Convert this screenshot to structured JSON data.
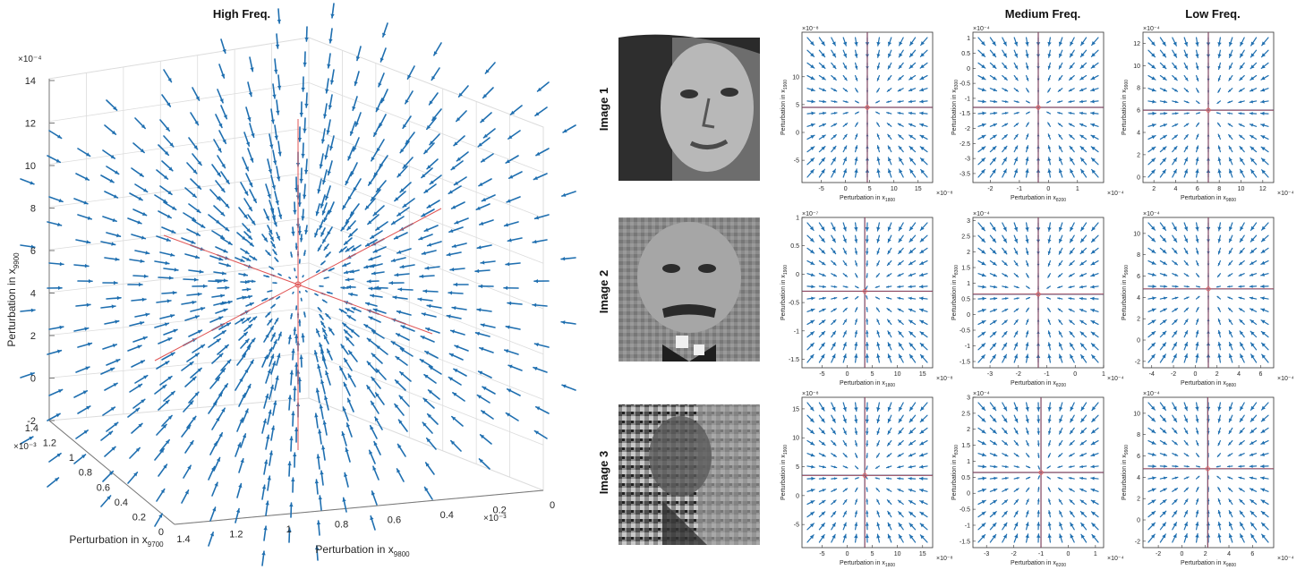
{
  "colors": {
    "arrow": "#1f6fb0",
    "axis_line": "#8b1a1a",
    "frame": "#333333",
    "grid": "#dcdcdc",
    "text": "#262626"
  },
  "column_titles": [
    "High Freq.",
    "Medium Freq.",
    "Low Freq."
  ],
  "row_labels": [
    "Image 1",
    "Image 2",
    "Image 3"
  ],
  "images": [
    {
      "label": "Image 1",
      "description_icon": "woman-face-photo-icon"
    },
    {
      "label": "Image 2",
      "description_icon": "einstein-portrait-photo-icon"
    },
    {
      "label": "Image 3",
      "description_icon": "noisy-portrait-photo-icon"
    }
  ],
  "chart_data": [
    {
      "type": "quiver3d",
      "panel": "main",
      "zlabel_base": "Perturbation in x",
      "zlabel_sub": "9900",
      "xlabel_base": "Perturbation in x",
      "xlabel_sub": "9700",
      "ylabel_base": "Perturbation in x",
      "ylabel_sub": "9800",
      "z_exponent": "×10⁻⁴",
      "x_exponent": "×10⁻³",
      "y_exponent": "×10⁻³",
      "z_ticks": [
        "-2",
        "0",
        "2",
        "4",
        "6",
        "8",
        "10",
        "12",
        "14"
      ],
      "x_ticks": [
        "0",
        "0.2",
        "0.4",
        "0.6",
        "0.8",
        "1",
        "1.2",
        "1.4"
      ],
      "y_ticks": [
        "1.4",
        "1.2",
        "1",
        "0.8",
        "0.6",
        "0.4",
        "0.2",
        "0"
      ],
      "grid": true,
      "center": [
        0.7,
        0.7,
        4
      ]
    },
    {
      "type": "quiver",
      "panel": "r1c1",
      "xlabel_base": "Perturbation in x",
      "xlabel_sub": "1800",
      "ylabel_base": "Perturbation in x",
      "ylabel_sub": "1900",
      "exp": "×10⁻⁸",
      "xexp": "×10⁻⁸",
      "xticks": [
        "-5",
        "0",
        "5",
        "10",
        "15"
      ],
      "xlim": [
        -9,
        18
      ],
      "yticks": [
        "-5",
        "0",
        "5",
        "10"
      ],
      "ylim": [
        -9,
        18
      ],
      "center": [
        4.5,
        4.5
      ]
    },
    {
      "type": "quiver",
      "panel": "r1c2",
      "xlabel_base": "Perturbation in x",
      "xlabel_sub": "8200",
      "ylabel_base": "Perturbation in x",
      "ylabel_sub": "8300",
      "exp": "×10⁻⁴",
      "xexp": "×10⁻⁴",
      "xticks": [
        "-2",
        "-1",
        "0",
        "1"
      ],
      "xlim": [
        -2.6,
        1.9
      ],
      "yticks": [
        "-3.5",
        "-3",
        "-2.5",
        "-2",
        "-1.5",
        "-1",
        "-0.5",
        "0",
        "0.5",
        "1"
      ],
      "ylim": [
        -3.8,
        1.2
      ],
      "center": [
        -0.35,
        -1.3
      ]
    },
    {
      "type": "quiver",
      "panel": "r1c3",
      "xlabel_base": "Perturbation in x",
      "xlabel_sub": "9800",
      "ylabel_base": "Perturbation in x",
      "ylabel_sub": "9900",
      "exp": "×10⁻⁴",
      "xexp": "×10⁻⁴",
      "xticks": [
        "2",
        "4",
        "6",
        "8",
        "10",
        "12"
      ],
      "xlim": [
        1,
        13
      ],
      "yticks": [
        "0",
        "2",
        "4",
        "6",
        "8",
        "10",
        "12"
      ],
      "ylim": [
        -0.5,
        13
      ],
      "center": [
        7,
        6
      ]
    },
    {
      "type": "quiver",
      "panel": "r2c1",
      "xlabel_base": "Perturbation in x",
      "xlabel_sub": "1800",
      "ylabel_base": "Perturbation in x",
      "ylabel_sub": "1900",
      "exp": "×10⁻⁷",
      "xexp": "×10⁻⁸",
      "xticks": [
        "-5",
        "0",
        "5",
        "10",
        "15"
      ],
      "xlim": [
        -9,
        17
      ],
      "yticks": [
        "-1.5",
        "-1",
        "-0.5",
        "0",
        "0.5",
        "1"
      ],
      "ylim": [
        -1.65,
        1.0
      ],
      "center": [
        3.5,
        -0.3
      ]
    },
    {
      "type": "quiver",
      "panel": "r2c2",
      "xlabel_base": "Perturbation in x",
      "xlabel_sub": "8200",
      "ylabel_base": "Perturbation in x",
      "ylabel_sub": "8300",
      "exp": "×10⁻⁴",
      "xexp": "×10⁻⁴",
      "xticks": [
        "-3",
        "-2",
        "-1",
        "0",
        "1"
      ],
      "xlim": [
        -3.6,
        1.0
      ],
      "yticks": [
        "-1.5",
        "-1",
        "-0.5",
        "0",
        "0.5",
        "1",
        "1.5",
        "2",
        "2.5",
        "3"
      ],
      "ylim": [
        -1.7,
        3.1
      ],
      "center": [
        -1.3,
        0.65
      ]
    },
    {
      "type": "quiver",
      "panel": "r2c3",
      "xlabel_base": "Perturbation in x",
      "xlabel_sub": "9800",
      "ylabel_base": "Perturbation in x",
      "ylabel_sub": "9900",
      "exp": "×10⁻⁴",
      "xexp": "×10⁻⁴",
      "xticks": [
        "-4",
        "-2",
        "0",
        "2",
        "4",
        "6"
      ],
      "xlim": [
        -4.8,
        7.2
      ],
      "yticks": [
        "-2",
        "0",
        "2",
        "4",
        "6",
        "8",
        "10"
      ],
      "ylim": [
        -2.6,
        11.5
      ],
      "center": [
        1.2,
        4.8
      ]
    },
    {
      "type": "quiver",
      "panel": "r3c1",
      "xlabel_base": "Perturbation in x",
      "xlabel_sub": "1800",
      "ylabel_base": "Perturbation in x",
      "ylabel_sub": "1900",
      "exp": "×10⁻⁸",
      "xexp": "×10⁻⁸",
      "xticks": [
        "-5",
        "0",
        "5",
        "10",
        "15"
      ],
      "xlim": [
        -9,
        17
      ],
      "yticks": [
        "-5",
        "0",
        "5",
        "10",
        "15"
      ],
      "ylim": [
        -9,
        17
      ],
      "center": [
        3.5,
        3.5
      ]
    },
    {
      "type": "quiver",
      "panel": "r3c2",
      "xlabel_base": "Perturbation in x",
      "xlabel_sub": "8200",
      "ylabel_base": "Perturbation in x",
      "ylabel_sub": "8300",
      "exp": "×10⁻⁴",
      "xexp": "×10⁻⁴",
      "xticks": [
        "-3",
        "-2",
        "-1",
        "0",
        "1"
      ],
      "xlim": [
        -3.5,
        1.3
      ],
      "yticks": [
        "-1.5",
        "-1",
        "-0.5",
        "0",
        "0.5",
        "1",
        "1.5",
        "2",
        "2.5",
        "3"
      ],
      "ylim": [
        -1.7,
        3.0
      ],
      "center": [
        -1.0,
        0.65
      ]
    },
    {
      "type": "quiver",
      "panel": "r3c3",
      "xlabel_base": "Perturbation in x",
      "xlabel_sub": "9800",
      "ylabel_base": "Perturbation in x",
      "ylabel_sub": "9900",
      "exp": "×10⁻⁴",
      "xexp": "×10⁻⁴",
      "xticks": [
        "-2",
        "0",
        "2",
        "4",
        "6",
        "8"
      ],
      "xlim": [
        -3.3,
        7.8
      ],
      "yticks": [
        "-2",
        "0",
        "2",
        "4",
        "6",
        "8",
        "10"
      ],
      "ylim": [
        -2.6,
        11.5
      ],
      "center": [
        2.2,
        4.8
      ]
    }
  ]
}
